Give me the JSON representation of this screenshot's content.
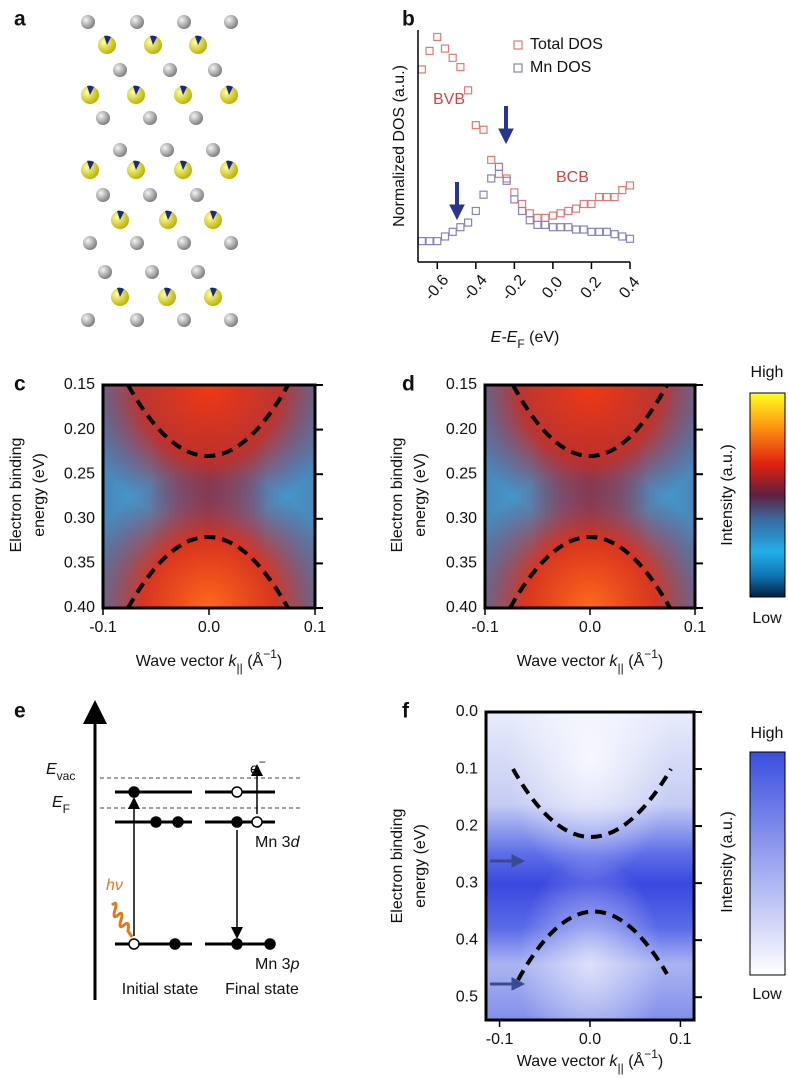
{
  "panel_a": {
    "label": "a"
  },
  "chart_data": [
    {
      "type": "scatter",
      "panel": "b",
      "x": [
        -0.68,
        -0.64,
        -0.6,
        -0.56,
        -0.52,
        -0.48,
        -0.44,
        -0.4,
        -0.36,
        -0.32,
        -0.28,
        -0.24,
        -0.2,
        -0.16,
        -0.12,
        -0.08,
        -0.04,
        0,
        0.04,
        0.08,
        0.12,
        0.16,
        0.2,
        0.24,
        0.28,
        0.32,
        0.36,
        0.4
      ],
      "series": [
        {
          "name": "Total DOS",
          "color": "#e07a7a",
          "values": [
            0.83,
            0.91,
            0.97,
            0.92,
            0.88,
            0.84,
            0.74,
            0.59,
            0.57,
            0.44,
            0.38,
            0.36,
            0.3,
            0.25,
            0.21,
            0.19,
            0.19,
            0.2,
            0.21,
            0.22,
            0.23,
            0.25,
            0.25,
            0.28,
            0.28,
            0.28,
            0.31,
            0.33
          ]
        },
        {
          "name": "Mn DOS",
          "color": "#8484c4",
          "values": [
            0.09,
            0.09,
            0.09,
            0.11,
            0.13,
            0.15,
            0.17,
            0.22,
            0.29,
            0.36,
            0.41,
            0.35,
            0.27,
            0.22,
            0.18,
            0.16,
            0.16,
            0.15,
            0.15,
            0.15,
            0.14,
            0.14,
            0.13,
            0.13,
            0.13,
            0.12,
            0.11,
            0.1
          ]
        }
      ],
      "x_label": [
        "E-E",
        "F",
        " (eV)"
      ],
      "y_label": "Normalized DOS (a.u.)",
      "xlim": [
        -0.7,
        0.4
      ],
      "ylim": [
        0,
        1
      ],
      "xticks": [
        -0.6,
        -0.4,
        -0.2,
        {
          "value": 0,
          "label": "0.0"
        },
        0.2,
        0.4
      ],
      "legend": "upper right",
      "annotations": [
        {
          "text": "BVB",
          "color": "#d04444"
        },
        {
          "text": "BCB",
          "color": "#d04444"
        }
      ]
    },
    {
      "type": "heatmap",
      "panel": "c",
      "colormap": "thermal",
      "xlim": [
        -0.1,
        0.1
      ],
      "ylim": [
        0.4,
        0.15
      ],
      "xticks": [
        -0.1,
        {
          "value": 0,
          "label": "0.0"
        },
        0.1
      ],
      "yticks": [
        0.15,
        {
          "value": 0.2,
          "label": "0.20"
        },
        0.25,
        {
          "value": 0.3,
          "label": "0.30"
        },
        0.35,
        {
          "value": 0.4,
          "label": "0.40"
        }
      ],
      "x_label": [
        "Wave vector ",
        "k",
        "||",
        " (Å",
        "−1",
        ")"
      ],
      "y_label": [
        "Electron binding",
        "energy  (eV)"
      ]
    },
    {
      "type": "heatmap",
      "panel": "d",
      "colormap": "thermal",
      "xlim": [
        -0.1,
        0.1
      ],
      "ylim": [
        0.4,
        0.15
      ],
      "xticks": [
        -0.1,
        {
          "value": 0,
          "label": "0.0"
        },
        0.1
      ],
      "yticks": [
        0.15,
        {
          "value": 0.2,
          "label": "0.20"
        },
        0.25,
        {
          "value": 0.3,
          "label": "0.30"
        },
        0.35,
        {
          "value": 0.4,
          "label": "0.40"
        }
      ],
      "x_label": [
        "Wave vector ",
        "k",
        "||",
        " (Å",
        "−1",
        ")"
      ],
      "y_label": [
        "Electron binding",
        "energy  (eV)"
      ]
    },
    {
      "type": "heatmap",
      "panel": "f",
      "colormap": "blues",
      "xlim": [
        -0.115,
        0.115
      ],
      "ylim": [
        0.54,
        0
      ],
      "xticks": [
        -0.1,
        {
          "value": 0,
          "label": "0.0"
        },
        0.1
      ],
      "yticks": [
        {
          "value": 0,
          "label": "0.0"
        },
        0.1,
        0.2,
        0.3,
        0.4,
        0.5
      ],
      "x_label": [
        "Wave vector ",
        "k",
        "||",
        " (Å",
        "−1",
        ")"
      ],
      "y_label": [
        "Electron binding",
        "energy  (eV)"
      ]
    }
  ],
  "colorbar_cd": {
    "high": "High",
    "low": "Low",
    "label": "Intensity (a.u.)"
  },
  "colorbar_f": {
    "high": "High",
    "low": "Low",
    "label": "Intensity (a.u.)"
  },
  "panel_e": {
    "label": "e",
    "E_vac": [
      "E",
      "vac"
    ],
    "E_F": [
      "E",
      "F"
    ],
    "electron": [
      "e",
      "−"
    ],
    "mn3d": [
      "Mn 3",
      "d"
    ],
    "hv": "hν",
    "mn3p": [
      "Mn 3",
      "p"
    ],
    "initial": "Initial state",
    "final": "Final state"
  }
}
